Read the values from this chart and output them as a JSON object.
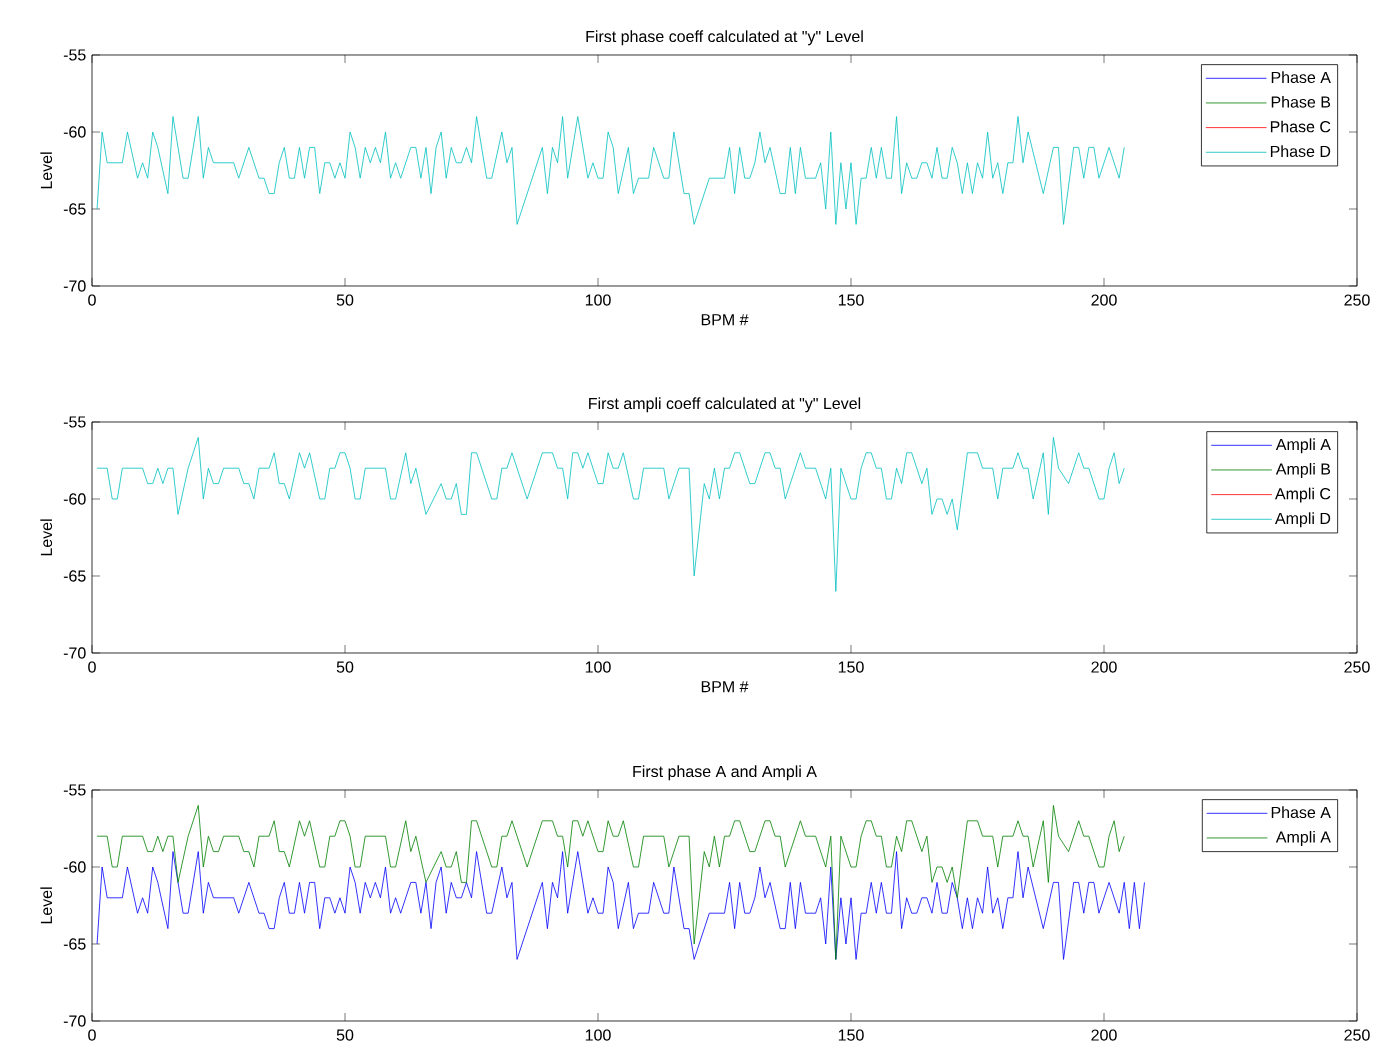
{
  "chart_data": [
    {
      "type": "line",
      "title": "First phase coeff calculated at \"y\" Level",
      "xlabel": "BPM #",
      "ylabel": "Level",
      "xlim": [
        0,
        250
      ],
      "ylim": [
        -70,
        -55
      ],
      "xticks": [
        0,
        50,
        100,
        150,
        200,
        250
      ],
      "yticks": [
        -70,
        -65,
        -60,
        -55
      ],
      "legend": "top right",
      "series": [
        {
          "name": "Phase A",
          "color": "#0000ff"
        },
        {
          "name": "Phase B",
          "color": "#008000"
        },
        {
          "name": "Phase C",
          "color": "#ff0000"
        },
        {
          "name": "Phase D",
          "color": "#00bfbf",
          "x": [
            1,
            2,
            3,
            6,
            7,
            9,
            10,
            11,
            12,
            13,
            15,
            16,
            18,
            19,
            21,
            22,
            23,
            24,
            28,
            29,
            31,
            33,
            34,
            35,
            36,
            37,
            38,
            39,
            40,
            41,
            42,
            43,
            44,
            45,
            46,
            47,
            48,
            49,
            50,
            51,
            52,
            53,
            54,
            55,
            56,
            57,
            58,
            59,
            60,
            61,
            63,
            64,
            65,
            66,
            67,
            68,
            69,
            70,
            71,
            72,
            73,
            74,
            75,
            76,
            78,
            79,
            81,
            82,
            83,
            84,
            89,
            90,
            91,
            92,
            93,
            94,
            96,
            98,
            99,
            100,
            101,
            102,
            103,
            104,
            106,
            107,
            108,
            110,
            111,
            112,
            113,
            114,
            115,
            117,
            118,
            119,
            122,
            123,
            124,
            125,
            126,
            127,
            128,
            129,
            130,
            131,
            132,
            133,
            134,
            136,
            137,
            138,
            139,
            140,
            141,
            143,
            144,
            145,
            146,
            147,
            148,
            149,
            150,
            151,
            152,
            153,
            154,
            155,
            156,
            157,
            158,
            159,
            160,
            161,
            162,
            163,
            164,
            165,
            166,
            167,
            168,
            169,
            170,
            171,
            172,
            173,
            174,
            175,
            176,
            177,
            178,
            179,
            180,
            181,
            182,
            183,
            184,
            185,
            188,
            190,
            191,
            192,
            194,
            195,
            196,
            197,
            198,
            199,
            201,
            203,
            204
          ],
          "values": [
            -65,
            -60,
            -62,
            -62,
            -60,
            -63,
            -62,
            -63,
            -60,
            -61,
            -64,
            -59,
            -63,
            -63,
            -59,
            -63,
            -61,
            -62,
            -62,
            -63,
            -61,
            -63,
            -63,
            -64,
            -64,
            -62,
            -61,
            -63,
            -63,
            -61,
            -63,
            -61,
            -61,
            -64,
            -62,
            -62,
            -63,
            -62,
            -63,
            -60,
            -61,
            -63,
            -61,
            -62,
            -61,
            -62,
            -60,
            -63,
            -62,
            -63,
            -61,
            -61,
            -63,
            -61,
            -64,
            -61,
            -60,
            -63,
            -61,
            -62,
            -62,
            -61,
            -62,
            -59,
            -63,
            -63,
            -60,
            -62,
            -61,
            -66,
            -61,
            -64,
            -61,
            -62,
            -59,
            -63,
            -59,
            -63,
            -62,
            -63,
            -63,
            -60,
            -61,
            -64,
            -61,
            -64,
            -63,
            -63,
            -61,
            -62,
            -63,
            -63,
            -60,
            -64,
            -64,
            -66,
            -63,
            -63,
            -63,
            -63,
            -61,
            -64,
            -61,
            -63,
            -63,
            -62,
            -60,
            -62,
            -61,
            -64,
            -64,
            -61,
            -64,
            -61,
            -63,
            -63,
            -62,
            -65,
            -60,
            -66,
            -62,
            -65,
            -62,
            -66,
            -63,
            -63,
            -61,
            -63,
            -61,
            -63,
            -63,
            -59,
            -64,
            -62,
            -63,
            -63,
            -62,
            -62,
            -63,
            -61,
            -63,
            -63,
            -61,
            -62,
            -64,
            -62,
            -64,
            -62,
            -63,
            -60,
            -63,
            -62,
            -64,
            -62,
            -62,
            -59,
            -62,
            -60,
            -64,
            -61,
            -61,
            -66,
            -61,
            -61,
            -63,
            -61,
            -61,
            -63,
            -61,
            -63,
            -61
          ]
        }
      ]
    },
    {
      "type": "line",
      "title": "First ampli coeff calculated at \"y\" Level",
      "xlabel": "BPM #",
      "ylabel": "Level",
      "xlim": [
        0,
        250
      ],
      "ylim": [
        -70,
        -55
      ],
      "xticks": [
        0,
        50,
        100,
        150,
        200,
        250
      ],
      "yticks": [
        -70,
        -65,
        -60,
        -55
      ],
      "legend": "top right",
      "series": [
        {
          "name": "Ampli A",
          "color": "#0000ff"
        },
        {
          "name": "Ampli B",
          "color": "#008000"
        },
        {
          "name": "Ampli C",
          "color": "#ff0000"
        },
        {
          "name": "Ampli D",
          "color": "#00bfbf",
          "x": [
            1,
            3,
            4,
            5,
            6,
            10,
            11,
            12,
            13,
            14,
            15,
            16,
            17,
            19,
            21,
            22,
            23,
            24,
            25,
            26,
            29,
            30,
            31,
            32,
            33,
            35,
            36,
            37,
            38,
            39,
            41,
            42,
            43,
            45,
            46,
            47,
            48,
            49,
            50,
            51,
            52,
            53,
            54,
            58,
            59,
            60,
            62,
            63,
            64,
            66,
            69,
            70,
            71,
            72,
            73,
            74,
            75,
            76,
            79,
            80,
            81,
            82,
            83,
            86,
            89,
            91,
            92,
            93,
            94,
            95,
            96,
            97,
            98,
            100,
            101,
            102,
            103,
            104,
            105,
            107,
            108,
            109,
            113,
            114,
            116,
            118,
            119,
            121,
            122,
            123,
            124,
            125,
            126,
            127,
            128,
            130,
            131,
            133,
            134,
            135,
            136,
            137,
            140,
            141,
            143,
            145,
            146,
            147,
            148,
            150,
            151,
            152,
            153,
            154,
            155,
            156,
            157,
            158,
            159,
            160,
            161,
            162,
            164,
            165,
            166,
            167,
            168,
            169,
            170,
            171,
            173,
            175,
            176,
            178,
            179,
            180,
            182,
            183,
            184,
            185,
            186,
            188,
            189,
            190,
            191,
            193,
            195,
            196,
            197,
            199,
            200,
            201,
            202,
            203,
            204
          ],
          "values": [
            -58,
            -58,
            -60,
            -60,
            -58,
            -58,
            -59,
            -59,
            -58,
            -59,
            -58,
            -58,
            -61,
            -58,
            -56,
            -60,
            -58,
            -59,
            -59,
            -58,
            -58,
            -59,
            -59,
            -60,
            -58,
            -58,
            -57,
            -59,
            -59,
            -60,
            -57,
            -58,
            -57,
            -60,
            -60,
            -58,
            -58,
            -57,
            -57,
            -58,
            -60,
            -60,
            -58,
            -58,
            -60,
            -60,
            -57,
            -59,
            -58,
            -61,
            -59,
            -60,
            -60,
            -59,
            -61,
            -61,
            -57,
            -57,
            -60,
            -60,
            -58,
            -58,
            -57,
            -60,
            -57,
            -57,
            -58,
            -58,
            -60,
            -57,
            -57,
            -58,
            -57,
            -59,
            -59,
            -57,
            -58,
            -58,
            -57,
            -60,
            -60,
            -58,
            -58,
            -60,
            -58,
            -58,
            -65,
            -59,
            -60,
            -58,
            -60,
            -58,
            -58,
            -57,
            -57,
            -59,
            -59,
            -57,
            -57,
            -58,
            -58,
            -60,
            -57,
            -58,
            -58,
            -60,
            -58,
            -66,
            -58,
            -60,
            -60,
            -58,
            -57,
            -57,
            -58,
            -58,
            -60,
            -60,
            -58,
            -59,
            -57,
            -57,
            -59,
            -58,
            -61,
            -60,
            -60,
            -61,
            -60,
            -62,
            -57,
            -57,
            -58,
            -58,
            -60,
            -58,
            -58,
            -57,
            -58,
            -58,
            -60,
            -57,
            -61,
            -56,
            -58,
            -59,
            -57,
            -58,
            -58,
            -60,
            -60,
            -58,
            -57,
            -59,
            -58
          ]
        }
      ]
    },
    {
      "type": "line",
      "title": "First phase A and Ampli A",
      "ylabel": "Level",
      "xlim": [
        0,
        250
      ],
      "ylim": [
        -70,
        -55
      ],
      "xticks": [
        0,
        50,
        100,
        150,
        200,
        250
      ],
      "yticks": [
        -70,
        -65,
        -60,
        -55
      ],
      "legend": "top right",
      "series": [
        {
          "name": "Phase A",
          "color": "#0000ff",
          "x": [
            1,
            2,
            3,
            6,
            7,
            9,
            10,
            11,
            12,
            13,
            15,
            16,
            18,
            19,
            21,
            22,
            23,
            24,
            28,
            29,
            31,
            33,
            34,
            35,
            36,
            37,
            38,
            39,
            40,
            41,
            42,
            43,
            44,
            45,
            46,
            47,
            48,
            49,
            50,
            51,
            52,
            53,
            54,
            55,
            56,
            57,
            58,
            59,
            60,
            61,
            63,
            64,
            65,
            66,
            67,
            68,
            69,
            70,
            71,
            72,
            73,
            74,
            75,
            76,
            78,
            79,
            81,
            82,
            83,
            84,
            89,
            90,
            91,
            92,
            93,
            94,
            96,
            98,
            99,
            100,
            101,
            102,
            103,
            104,
            106,
            107,
            108,
            110,
            111,
            112,
            113,
            114,
            115,
            117,
            118,
            119,
            122,
            123,
            124,
            125,
            126,
            127,
            128,
            129,
            130,
            131,
            132,
            133,
            134,
            136,
            137,
            138,
            139,
            140,
            141,
            143,
            144,
            145,
            146,
            147,
            148,
            149,
            150,
            151,
            152,
            153,
            154,
            155,
            156,
            157,
            158,
            159,
            160,
            161,
            162,
            163,
            164,
            165,
            166,
            167,
            168,
            169,
            170,
            171,
            172,
            173,
            174,
            175,
            176,
            177,
            178,
            179,
            180,
            181,
            182,
            183,
            184,
            185,
            188,
            190,
            191,
            192,
            194,
            195,
            196,
            197,
            198,
            199,
            201,
            203,
            204,
            205,
            206,
            207,
            208
          ],
          "values": [
            -65,
            -60,
            -62,
            -62,
            -60,
            -63,
            -62,
            -63,
            -60,
            -61,
            -64,
            -59,
            -63,
            -63,
            -59,
            -63,
            -61,
            -62,
            -62,
            -63,
            -61,
            -63,
            -63,
            -64,
            -64,
            -62,
            -61,
            -63,
            -63,
            -61,
            -63,
            -61,
            -61,
            -64,
            -62,
            -62,
            -63,
            -62,
            -63,
            -60,
            -61,
            -63,
            -61,
            -62,
            -61,
            -62,
            -60,
            -63,
            -62,
            -63,
            -61,
            -61,
            -63,
            -61,
            -64,
            -61,
            -60,
            -63,
            -61,
            -62,
            -62,
            -61,
            -62,
            -59,
            -63,
            -63,
            -60,
            -62,
            -61,
            -66,
            -61,
            -64,
            -61,
            -62,
            -59,
            -63,
            -59,
            -63,
            -62,
            -63,
            -63,
            -60,
            -61,
            -64,
            -61,
            -64,
            -63,
            -63,
            -61,
            -62,
            -63,
            -63,
            -60,
            -64,
            -64,
            -66,
            -63,
            -63,
            -63,
            -63,
            -61,
            -64,
            -61,
            -63,
            -63,
            -62,
            -60,
            -62,
            -61,
            -64,
            -64,
            -61,
            -64,
            -61,
            -63,
            -63,
            -62,
            -65,
            -60,
            -66,
            -62,
            -65,
            -62,
            -66,
            -63,
            -63,
            -61,
            -63,
            -61,
            -63,
            -63,
            -59,
            -64,
            -62,
            -63,
            -63,
            -62,
            -62,
            -63,
            -61,
            -63,
            -63,
            -61,
            -62,
            -64,
            -62,
            -64,
            -62,
            -63,
            -60,
            -63,
            -62,
            -64,
            -62,
            -62,
            -59,
            -62,
            -60,
            -64,
            -61,
            -61,
            -66,
            -61,
            -61,
            -63,
            -61,
            -61,
            -63,
            -61,
            -63,
            -61,
            -64,
            -61,
            -64,
            -61
          ]
        },
        {
          "name": "Ampli A",
          "color": "#008000",
          "x": [
            1,
            3,
            4,
            5,
            6,
            10,
            11,
            12,
            13,
            14,
            15,
            16,
            17,
            19,
            21,
            22,
            23,
            24,
            25,
            26,
            29,
            30,
            31,
            32,
            33,
            35,
            36,
            37,
            38,
            39,
            41,
            42,
            43,
            45,
            46,
            47,
            48,
            49,
            50,
            51,
            52,
            53,
            54,
            58,
            59,
            60,
            62,
            63,
            64,
            66,
            69,
            70,
            71,
            72,
            73,
            74,
            75,
            76,
            79,
            80,
            81,
            82,
            83,
            86,
            89,
            91,
            92,
            93,
            94,
            95,
            96,
            97,
            98,
            100,
            101,
            102,
            103,
            104,
            105,
            107,
            108,
            109,
            113,
            114,
            116,
            118,
            119,
            121,
            122,
            123,
            124,
            125,
            126,
            127,
            128,
            130,
            131,
            133,
            134,
            135,
            136,
            137,
            140,
            141,
            143,
            145,
            146,
            147,
            148,
            150,
            151,
            152,
            153,
            154,
            155,
            156,
            157,
            158,
            159,
            160,
            161,
            162,
            164,
            165,
            166,
            167,
            168,
            169,
            170,
            171,
            173,
            175,
            176,
            178,
            179,
            180,
            182,
            183,
            184,
            185,
            186,
            188,
            189,
            190,
            191,
            193,
            195,
            196,
            197,
            199,
            200,
            201,
            202,
            203,
            204
          ],
          "values": [
            -58,
            -58,
            -60,
            -60,
            -58,
            -58,
            -59,
            -59,
            -58,
            -59,
            -58,
            -58,
            -61,
            -58,
            -56,
            -60,
            -58,
            -59,
            -59,
            -58,
            -58,
            -59,
            -59,
            -60,
            -58,
            -58,
            -57,
            -59,
            -59,
            -60,
            -57,
            -58,
            -57,
            -60,
            -60,
            -58,
            -58,
            -57,
            -57,
            -58,
            -60,
            -60,
            -58,
            -58,
            -60,
            -60,
            -57,
            -59,
            -58,
            -61,
            -59,
            -60,
            -60,
            -59,
            -61,
            -61,
            -57,
            -57,
            -60,
            -60,
            -58,
            -58,
            -57,
            -60,
            -57,
            -57,
            -58,
            -58,
            -60,
            -57,
            -57,
            -58,
            -57,
            -59,
            -59,
            -57,
            -58,
            -58,
            -57,
            -60,
            -60,
            -58,
            -58,
            -60,
            -58,
            -58,
            -65,
            -59,
            -60,
            -58,
            -60,
            -58,
            -58,
            -57,
            -57,
            -59,
            -59,
            -57,
            -57,
            -58,
            -58,
            -60,
            -57,
            -58,
            -58,
            -60,
            -58,
            -66,
            -58,
            -60,
            -60,
            -58,
            -57,
            -57,
            -58,
            -58,
            -60,
            -60,
            -58,
            -59,
            -57,
            -57,
            -59,
            -58,
            -61,
            -60,
            -60,
            -61,
            -60,
            -62,
            -57,
            -57,
            -58,
            -58,
            -60,
            -58,
            -58,
            -57,
            -58,
            -58,
            -60,
            -57,
            -61,
            -56,
            -58,
            -59,
            -57,
            -58,
            -58,
            -60,
            -60,
            -58,
            -57,
            -59,
            -58
          ]
        }
      ]
    }
  ]
}
